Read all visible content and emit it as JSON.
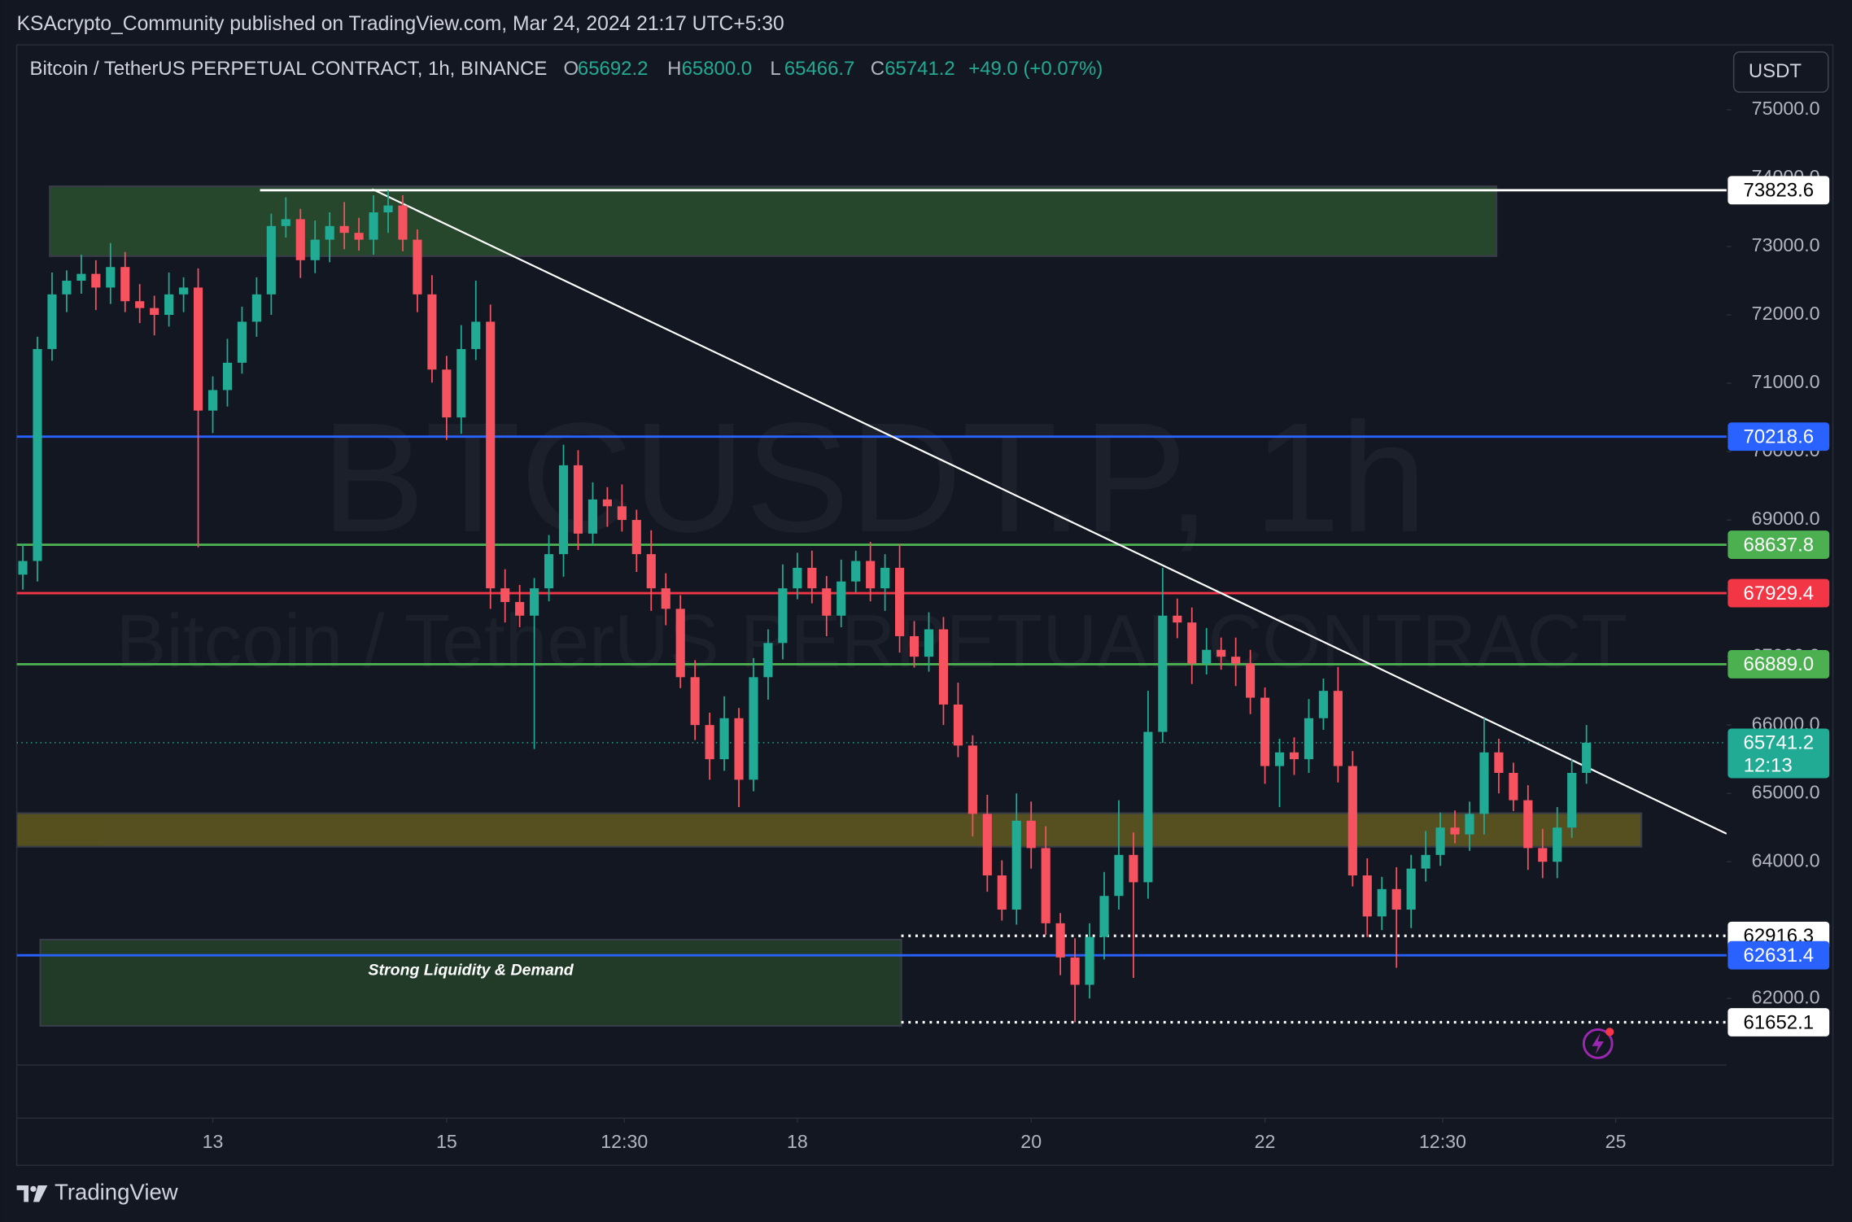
{
  "header": {
    "published": "KSAcrypto_Community published on TradingView.com, Mar 24, 2024 21:17 UTC+5:30"
  },
  "legend": {
    "symbol": "Bitcoin / TetherUS PERPETUAL CONTRACT, 1h, BINANCE",
    "open_label": "O",
    "open": "65692.2",
    "high_label": "H",
    "high": "65800.0",
    "low_label": "L",
    "low": "65466.7",
    "close_label": "C",
    "close": "65741.2",
    "change": "+49.0 (+0.07%)"
  },
  "currency": "USDT",
  "watermark": {
    "symbol": "BTCUSDT.P, 1h",
    "description": "Bitcoin / TetherUS PERPETUAL CONTRACT"
  },
  "footer": {
    "brand": "TradingView"
  },
  "chart_data": {
    "type": "candlestick",
    "xlim": [
      11.323,
      25.949
    ],
    "ylim": [
      60250,
      75950
    ],
    "xticks": [
      13,
      15,
      {
        "value": 16.52,
        "label": "12:30"
      },
      18,
      20,
      22,
      {
        "value": 23.52,
        "label": "12:30"
      },
      25
    ],
    "yticks": [
      {
        "value": 62000,
        "label": "62000.0"
      },
      {
        "value": 63000,
        "label": "63000.0"
      },
      {
        "value": 64000,
        "label": "64000.0"
      },
      {
        "value": 65000,
        "label": "65000.0"
      },
      {
        "value": 66000,
        "label": "66000.0"
      },
      {
        "value": 67000,
        "label": "67000.0"
      },
      {
        "value": 68000,
        "label": "68000.0"
      },
      {
        "value": 69000,
        "label": "69000.0"
      },
      {
        "value": 70000,
        "label": "70000.0"
      },
      {
        "value": 71000,
        "label": "71000.0"
      },
      {
        "value": 72000,
        "label": "72000.0"
      },
      {
        "value": 73000,
        "label": "73000.0"
      },
      {
        "value": 74000,
        "label": "74000.0"
      },
      {
        "value": 75000,
        "label": "75000.0"
      }
    ],
    "up_color": "#22ab94",
    "down_color": "#f7525f",
    "candles": {
      "x": [
        11.375,
        11.5,
        11.625,
        11.75,
        11.875,
        12,
        12.125,
        12.25,
        12.375,
        12.5,
        12.625,
        12.75,
        12.875,
        13,
        13.125,
        13.25,
        13.375,
        13.5,
        13.625,
        13.75,
        13.875,
        14,
        14.125,
        14.25,
        14.375,
        14.5,
        14.625,
        14.75,
        14.875,
        15,
        15.125,
        15.25,
        15.375,
        15.5,
        15.625,
        15.75,
        15.875,
        16,
        16.125,
        16.25,
        16.375,
        16.5,
        16.625,
        16.75,
        16.875,
        17,
        17.125,
        17.25,
        17.375,
        17.5,
        17.625,
        17.75,
        17.875,
        18,
        18.125,
        18.25,
        18.375,
        18.5,
        18.625,
        18.75,
        18.875,
        19,
        19.125,
        19.25,
        19.375,
        19.5,
        19.625,
        19.75,
        19.875,
        20,
        20.125,
        20.25,
        20.375,
        20.5,
        20.625,
        20.75,
        20.875,
        21,
        21.125,
        21.25,
        21.375,
        21.5,
        21.625,
        21.75,
        21.875,
        22,
        22.125,
        22.25,
        22.375,
        22.5,
        22.625,
        22.75,
        22.875,
        23,
        23.125,
        23.25,
        23.375,
        23.5,
        23.625,
        23.75,
        23.875,
        24,
        24.125,
        24.25,
        24.375,
        24.5,
        24.625,
        24.75
      ],
      "open": [
        68200,
        68400,
        71500,
        72300,
        72500,
        72600,
        72400,
        72700,
        72200,
        72100,
        72000,
        72300,
        72400,
        70600,
        70900,
        71300,
        71900,
        72300,
        73300,
        73400,
        72800,
        73100,
        73300,
        73200,
        73100,
        73500,
        73600,
        73100,
        72300,
        71200,
        70500,
        71500,
        71900,
        68000,
        67800,
        67600,
        68000,
        68500,
        69800,
        68800,
        69300,
        69200,
        69000,
        68500,
        68000,
        67700,
        66700,
        66000,
        65500,
        66100,
        65200,
        66700,
        67200,
        68000,
        68300,
        68000,
        67600,
        68100,
        68400,
        68000,
        68300,
        67300,
        67000,
        67400,
        66300,
        65700,
        64700,
        63800,
        63300,
        64600,
        64200,
        63100,
        62600,
        62200,
        62900,
        63500,
        64100,
        63700,
        65900,
        67600,
        67500,
        66900,
        67100,
        67000,
        66900,
        66400,
        65400,
        65600,
        65500,
        66100,
        66500,
        65400,
        63800,
        63200,
        63600,
        63300,
        63900,
        64100,
        64500,
        64400,
        64700,
        65600,
        65300,
        64900,
        64200,
        64000,
        64500,
        65300
      ],
      "high": [
        68650,
        71680,
        72620,
        72650,
        72880,
        72800,
        73050,
        72920,
        72450,
        72280,
        72620,
        72550,
        72680,
        71100,
        71650,
        72120,
        72550,
        73480,
        73720,
        73550,
        73380,
        73500,
        73650,
        73420,
        73750,
        73823.6,
        73750,
        73250,
        72580,
        71400,
        71850,
        72500,
        72150,
        68280,
        68050,
        68150,
        68780,
        70100,
        70020,
        69550,
        69480,
        69520,
        69150,
        68850,
        68220,
        67900,
        66950,
        66180,
        66420,
        66250,
        66980,
        67400,
        68350,
        68520,
        68550,
        68180,
        68420,
        68550,
        68680,
        68500,
        68650,
        67520,
        67650,
        67580,
        66620,
        65850,
        64980,
        64020,
        65000,
        64880,
        64520,
        63250,
        62880,
        63100,
        63850,
        64900,
        64430,
        66500,
        68300,
        67850,
        67720,
        67420,
        67280,
        67280,
        67100,
        66550,
        65800,
        65820,
        66380,
        66680,
        66850,
        65620,
        64050,
        63780,
        63920,
        64100,
        64450,
        64720,
        64750,
        64880,
        66100,
        65800,
        65450,
        65120,
        64480,
        64800,
        65500,
        66000
      ],
      "low": [
        67980,
        68100,
        71330,
        72040,
        72310,
        72070,
        72160,
        72040,
        71880,
        71700,
        71830,
        72040,
        68600,
        70270,
        70660,
        71140,
        71680,
        72000,
        73130,
        72540,
        72610,
        72770,
        72960,
        72940,
        72880,
        73200,
        72930,
        72040,
        71010,
        70170,
        70260,
        71340,
        67700,
        67500,
        67430,
        65650,
        67810,
        68170,
        68560,
        68640,
        68900,
        68830,
        68240,
        67670,
        67460,
        66540,
        65780,
        65200,
        65330,
        64800,
        65030,
        66370,
        66960,
        67840,
        67780,
        67300,
        67430,
        67940,
        67810,
        67670,
        67060,
        66840,
        66780,
        66000,
        65530,
        64370,
        63560,
        63140,
        63080,
        63900,
        62930,
        62340,
        61652.1,
        62000,
        62570,
        63300,
        62300,
        63460,
        65740,
        67270,
        66600,
        66740,
        66810,
        66570,
        66160,
        65140,
        64800,
        65270,
        65300,
        65930,
        65160,
        63640,
        62900,
        63000,
        62450,
        63030,
        63710,
        63940,
        64270,
        64160,
        64400,
        65000,
        64740,
        63880,
        63760,
        63760,
        64350,
        65140
      ],
      "close": [
        68400,
        71500,
        72300,
        72500,
        72600,
        72400,
        72700,
        72200,
        72100,
        72000,
        72300,
        72400,
        70600,
        70900,
        71300,
        71900,
        72300,
        73300,
        73400,
        72800,
        73100,
        73300,
        73200,
        73100,
        73500,
        73600,
        73100,
        72300,
        71200,
        70500,
        71500,
        71900,
        68000,
        67800,
        67600,
        68000,
        68500,
        69800,
        68800,
        69300,
        69200,
        69000,
        68500,
        68000,
        67700,
        66700,
        66000,
        65500,
        66100,
        65200,
        66700,
        67200,
        68000,
        68300,
        68000,
        67600,
        68100,
        68400,
        68000,
        68300,
        67300,
        67000,
        67400,
        66300,
        65700,
        64700,
        63800,
        63300,
        64600,
        64200,
        63100,
        62600,
        62200,
        62900,
        63500,
        64100,
        63700,
        65900,
        67600,
        67500,
        66900,
        67100,
        67000,
        66900,
        66400,
        65400,
        65600,
        65500,
        66100,
        66500,
        65400,
        63800,
        63200,
        63600,
        63300,
        63900,
        64100,
        64500,
        64400,
        64700,
        65600,
        65300,
        64900,
        64200,
        64000,
        64500,
        65300,
        65741.2
      ]
    },
    "zones": [
      {
        "x": [
          11.606,
          23.98
        ],
        "y": [
          72860,
          73880
        ],
        "color": "#284a2d"
      },
      {
        "x": [
          11.323,
          25.22
        ],
        "y": [
          64220,
          64710
        ],
        "color": "#5a5420"
      },
      {
        "x": [
          11.525,
          18.889
        ],
        "y": [
          61600,
          62860
        ],
        "color": "#223d29",
        "label": "Strong Liquidity & Demand"
      }
    ],
    "trendline": {
      "x": [
        14.364,
        25.949
      ],
      "y": [
        73840,
        64410
      ],
      "color": "#ffffff"
    },
    "levels": [
      {
        "price": 73823.6,
        "color": "#ffffff",
        "dotted": false,
        "from": 13.404
      },
      {
        "price": 70218.6,
        "color": "#2962ff",
        "dotted": false
      },
      {
        "price": 68637.8,
        "color": "#4caf50",
        "dotted": false
      },
      {
        "price": 67929.4,
        "color": "#f23645",
        "dotted": false
      },
      {
        "price": {
          "value": 66889,
          "label": "66889.0"
        },
        "color": "#4caf50",
        "dotted": false
      },
      {
        "price": 62916.3,
        "color": "#ffffff",
        "dotted": true,
        "from": 18.889
      },
      {
        "price": 62631.4,
        "color": "#2962ff",
        "dotted": false
      },
      {
        "price": 61652.1,
        "color": "#ffffff",
        "dotted": true,
        "from": 18.889
      }
    ],
    "last_price": {
      "value": 65741.2,
      "countdown": "12:13",
      "color": "#22ab94"
    }
  }
}
